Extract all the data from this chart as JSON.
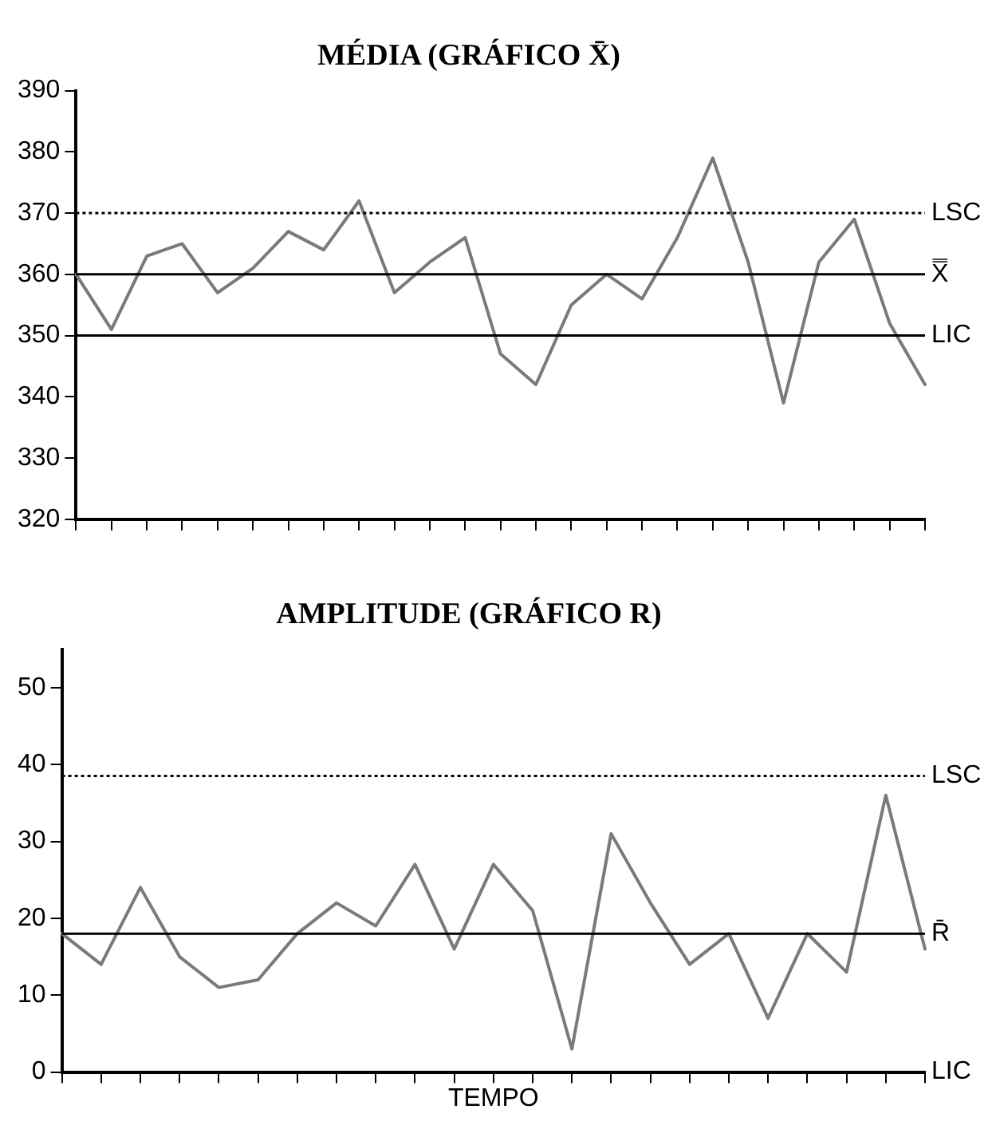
{
  "chart_data": [
    {
      "type": "line",
      "title": "MÉDIA (GRÁFICO X̄)",
      "tick_labels": "y",
      "legend": false,
      "marker": "none",
      "categories": [
        null,
        null,
        null,
        null,
        null,
        null,
        null,
        null,
        null,
        null,
        null,
        null,
        null,
        null,
        null,
        null,
        null,
        null,
        null,
        null,
        null,
        null,
        null,
        null,
        null
      ],
      "ylim": [
        320,
        390
      ],
      "yticks": [
        320,
        330,
        340,
        350,
        360,
        370,
        380,
        390
      ],
      "series": [
        {
          "color": "#7a7a7a",
          "values": [
            360,
            351,
            363,
            365,
            357,
            361,
            367,
            364,
            372,
            357,
            362,
            366,
            347,
            342,
            355,
            360,
            356,
            366,
            379,
            362,
            339,
            362,
            369,
            352,
            342
          ]
        }
      ],
      "ref_lines": [
        {
          "axis": "y",
          "value": 370,
          "label": "LSC",
          "line_style": "dotted",
          "color": "#000000"
        },
        {
          "axis": "y",
          "value": 360,
          "label": "X̿",
          "line_style": "solid",
          "color": "#000000"
        },
        {
          "axis": "y",
          "value": 350,
          "label": "LIC",
          "line_style": "solid",
          "color": "#000000"
        }
      ]
    },
    {
      "type": "line",
      "title": "AMPLITUDE (GRÁFICO R)",
      "xlabel": "TEMPO",
      "tick_labels": "y",
      "legend": false,
      "marker": "none",
      "categories": [
        null,
        null,
        null,
        null,
        null,
        null,
        null,
        null,
        null,
        null,
        null,
        null,
        null,
        null,
        null,
        null,
        null,
        null,
        null,
        null,
        null,
        null,
        null
      ],
      "ylim": [
        0,
        55
      ],
      "yticks": [
        0,
        10,
        20,
        30,
        40,
        50
      ],
      "series": [
        {
          "color": "#7a7a7a",
          "values": [
            18,
            14,
            24,
            15,
            11,
            12,
            18,
            22,
            19,
            27,
            16,
            27,
            21,
            3,
            31,
            22,
            14,
            18,
            7,
            18,
            13,
            36,
            16
          ]
        }
      ],
      "ref_lines": [
        {
          "axis": "y",
          "value": 38.5,
          "label": "LSC",
          "line_style": "dotted",
          "color": "#000000"
        },
        {
          "axis": "y",
          "value": 18,
          "label": "R̄",
          "line_style": "solid",
          "color": "#000000"
        },
        {
          "axis": "y",
          "value": 0,
          "label": "LIC",
          "line_style": "solid",
          "color": "#000000"
        }
      ]
    }
  ]
}
